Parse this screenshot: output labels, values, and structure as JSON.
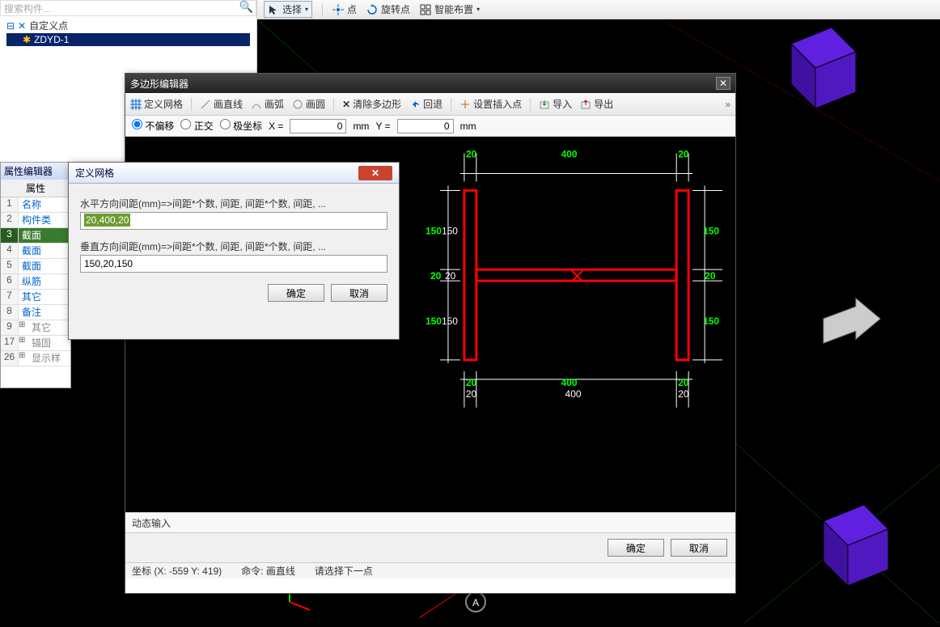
{
  "top_toolbar": {
    "select": "选择",
    "point": "点",
    "rotate_point": "旋转点",
    "smart_layout": "智能布置"
  },
  "left_tree": {
    "search_placeholder": "搜索构件...",
    "root": "自定义点",
    "child": "ZDYD-1"
  },
  "prop_panel": {
    "title": "属性编辑器",
    "header": "属性",
    "rows": [
      {
        "n": "1",
        "label": "名称"
      },
      {
        "n": "2",
        "label": "构件类"
      },
      {
        "n": "3",
        "label": "截面"
      },
      {
        "n": "4",
        "label": "截面"
      },
      {
        "n": "5",
        "label": "截面"
      },
      {
        "n": "6",
        "label": "纵筋"
      },
      {
        "n": "7",
        "label": "其它"
      },
      {
        "n": "8",
        "label": "备注"
      },
      {
        "n": "9",
        "label": "其它"
      },
      {
        "n": "17",
        "label": "锚固"
      },
      {
        "n": "26",
        "label": "显示样式"
      }
    ]
  },
  "poly_dialog": {
    "title": "多边形编辑器",
    "tools": {
      "define_grid": "定义网格",
      "line": "画直线",
      "arc": "画弧",
      "circle": "画圆",
      "clear": "清除多边形",
      "undo": "回退",
      "insert_pt": "设置插入点",
      "import": "导入",
      "export": "导出"
    },
    "coord": {
      "no_offset": "不偏移",
      "ortho": "正交",
      "polar": "极坐标",
      "x_label": "X =",
      "x_val": "0",
      "y_label": "Y =",
      "y_val": "0",
      "unit": "mm"
    },
    "dyn_label": "动态输入",
    "ok": "确定",
    "cancel": "取消",
    "status": {
      "coord": "坐标 (X: -559 Y: 419)",
      "cmd": "命令: 画直线",
      "prompt": "请选择下一点"
    },
    "diagram": {
      "top_dims": [
        "20",
        "400",
        "20"
      ],
      "side_dims": [
        "150",
        "20",
        "150"
      ],
      "bottom_dims": [
        "20",
        "400",
        "20"
      ],
      "colors": {
        "shape": "#ff0000",
        "dim": "#00ff00",
        "guide": "#ffffff",
        "mark": "#ff0000"
      }
    }
  },
  "grid_dialog": {
    "title": "定义网格",
    "h_label": "水平方向间距(mm)=>间距*个数, 间距, 间距*个数, 间距, ...",
    "h_val": "20,400,20",
    "v_label": "垂直方向间距(mm)=>间距*个数, 间距, 间距*个数, 间距, ...",
    "v_val": "150,20,150",
    "ok": "确定",
    "cancel": "取消"
  }
}
